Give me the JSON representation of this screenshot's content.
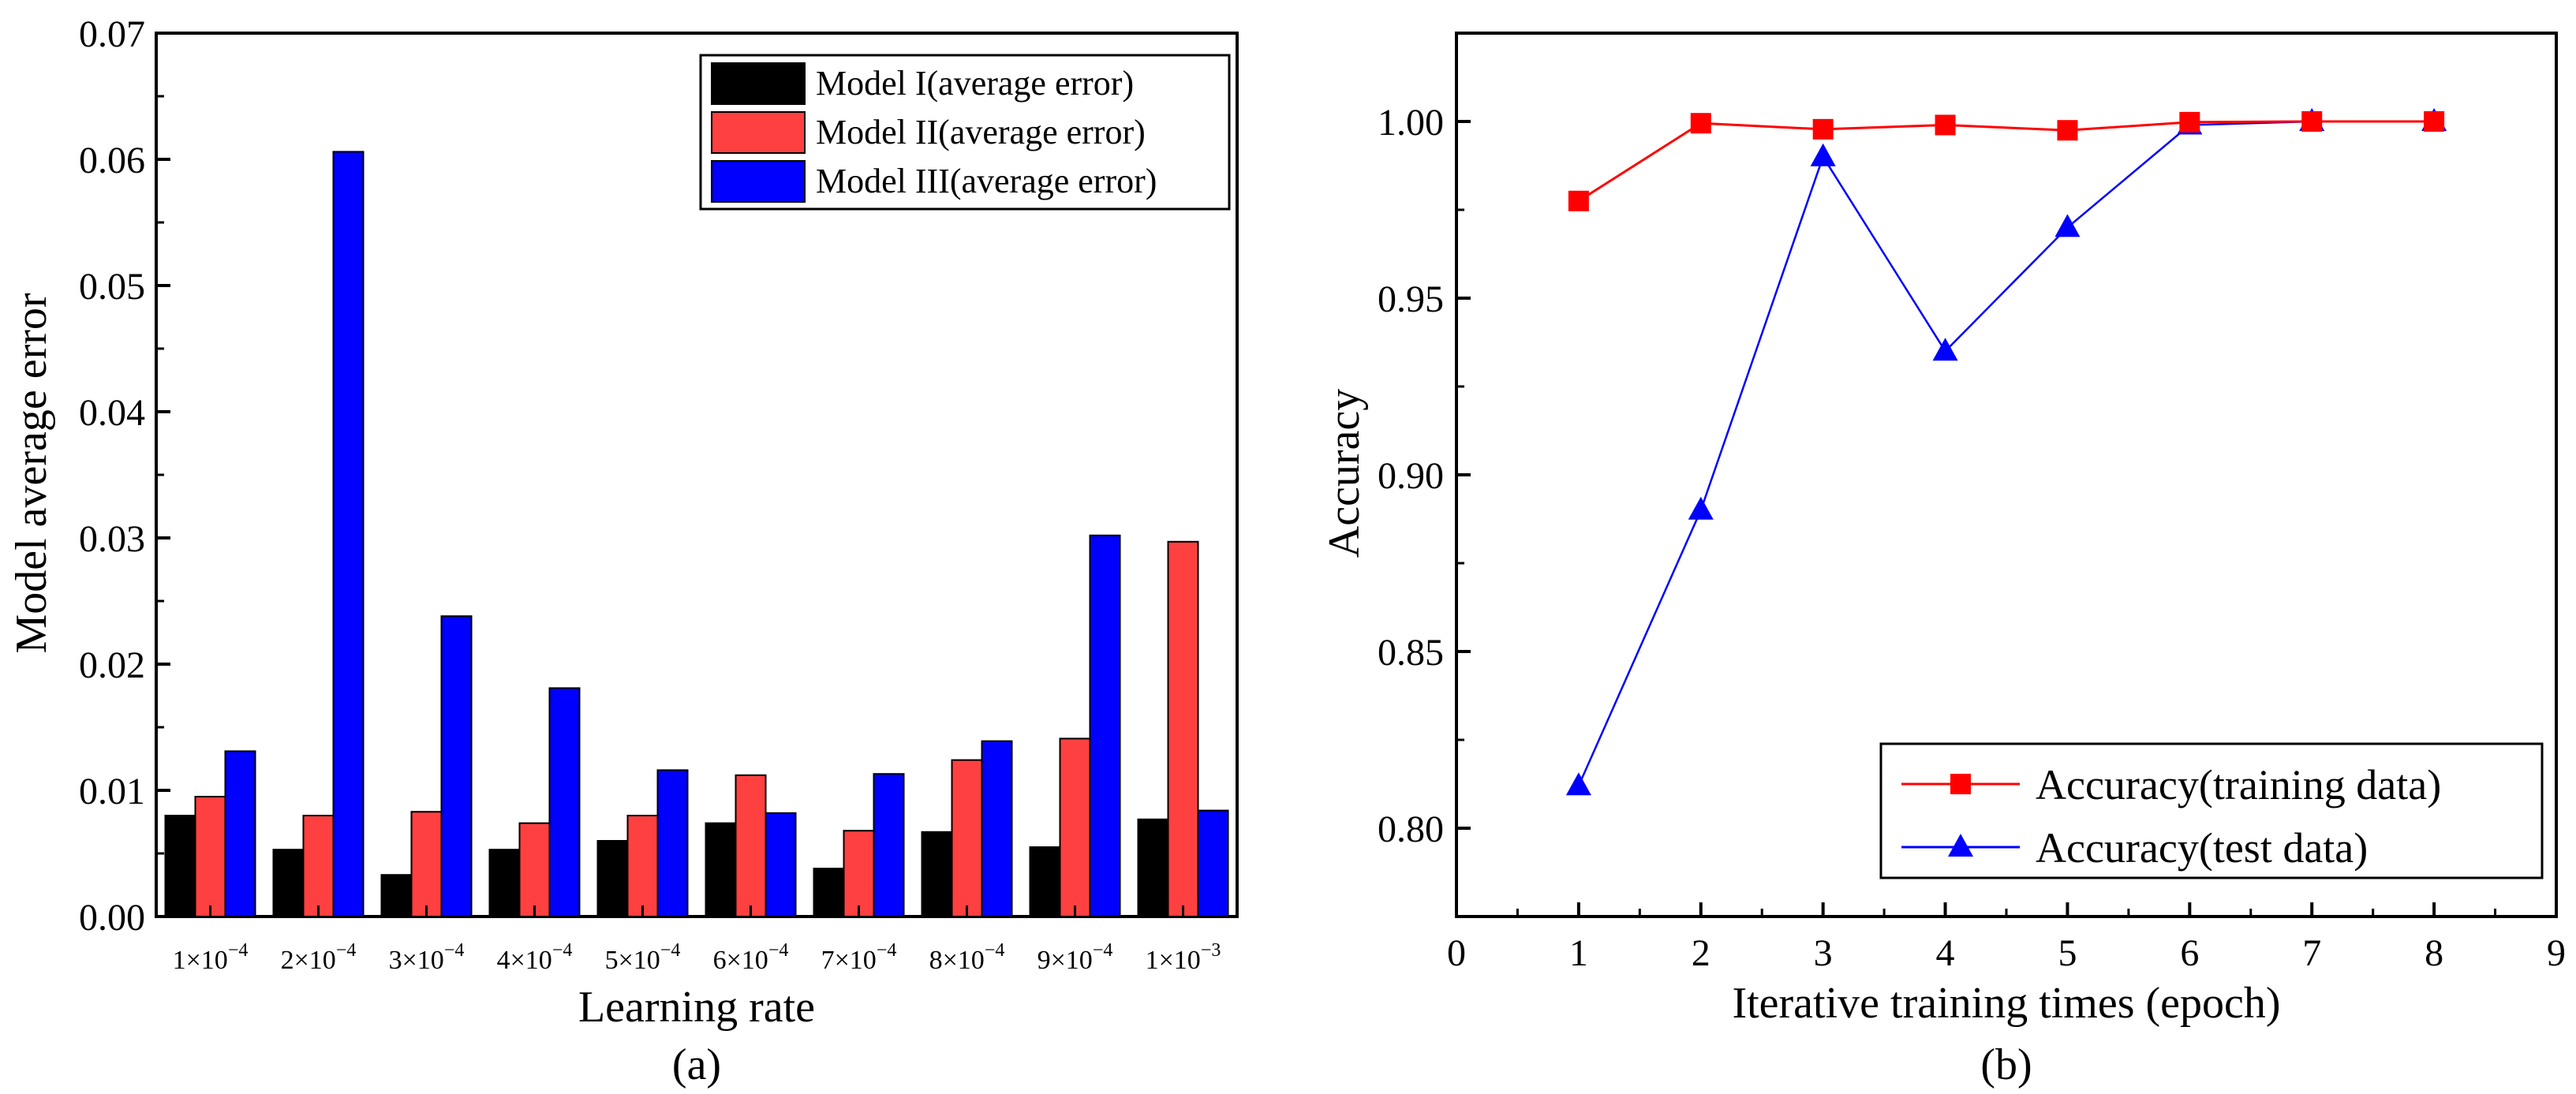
{
  "colors": {
    "model1": "#000000",
    "model2": "#ff4040",
    "model3": "#0000ff",
    "train_line": "#ff0000",
    "test_line": "#0000ff"
  },
  "chart_data": [
    {
      "type": "bar",
      "panel_label": "(a)",
      "xlabel": "Learning rate",
      "ylabel": "Model average error",
      "categories": [
        [
          "1",
          "−4"
        ],
        [
          "2",
          "−4"
        ],
        [
          "3",
          "−4"
        ],
        [
          "4",
          "−4"
        ],
        [
          "5",
          "−4"
        ],
        [
          "6",
          "−4"
        ],
        [
          "7",
          "−4"
        ],
        [
          "8",
          "−4"
        ],
        [
          "9",
          "−4"
        ],
        [
          "1",
          "−3"
        ]
      ],
      "category_text": [
        "1×10⁻⁴",
        "2×10⁻⁴",
        "3×10⁻⁴",
        "4×10⁻⁴",
        "5×10⁻⁴",
        "6×10⁻⁴",
        "7×10⁻⁴",
        "8×10⁻⁴",
        "9×10⁻⁴",
        "1×10⁻³"
      ],
      "ylim": [
        0,
        0.07
      ],
      "yticks": [
        "0.00",
        "0.01",
        "0.02",
        "0.03",
        "0.04",
        "0.05",
        "0.06",
        "0.07"
      ],
      "legend_position": "top-right",
      "series": [
        {
          "name": "Model I(average error)",
          "color_key": "model1",
          "values": [
            0.008,
            0.0053,
            0.0033,
            0.0053,
            0.006,
            0.0074,
            0.0038,
            0.0067,
            0.0055,
            0.0077
          ]
        },
        {
          "name": "Model II(average error)",
          "color_key": "model2",
          "values": [
            0.0095,
            0.008,
            0.0083,
            0.0074,
            0.008,
            0.0112,
            0.0068,
            0.0124,
            0.0141,
            0.0297
          ]
        },
        {
          "name": "Model III(average error)",
          "color_key": "model3",
          "values": [
            0.0131,
            0.0606,
            0.0238,
            0.0181,
            0.0116,
            0.0082,
            0.0113,
            0.0139,
            0.0302,
            0.0084
          ]
        }
      ]
    },
    {
      "type": "line",
      "panel_label": "(b)",
      "xlabel": "Iterative training times (epoch)",
      "ylabel": "Accuracy",
      "xlim": [
        0,
        9
      ],
      "ylim": [
        0.775,
        1.025
      ],
      "xticks": [
        "0",
        "1",
        "2",
        "3",
        "4",
        "5",
        "6",
        "7",
        "8",
        "9"
      ],
      "yticks": [
        "0.80",
        "0.85",
        "0.90",
        "0.95",
        "1.00"
      ],
      "legend_position": "bottom-right",
      "series": [
        {
          "name": "Accuracy(training data)",
          "marker": "square",
          "color_key": "train_line",
          "x": [
            1,
            2,
            3,
            4,
            5,
            6,
            7,
            8
          ],
          "y": [
            0.9775,
            0.9995,
            0.9978,
            0.999,
            0.9975,
            0.9998,
            1.0,
            1.0
          ]
        },
        {
          "name": "Accuracy(test data)",
          "marker": "triangle",
          "color_key": "test_line",
          "x": [
            1,
            2,
            3,
            4,
            5,
            6,
            7,
            8
          ],
          "y": [
            0.812,
            0.89,
            0.99,
            0.935,
            0.97,
            0.999,
            1.0,
            1.0
          ]
        }
      ]
    }
  ]
}
